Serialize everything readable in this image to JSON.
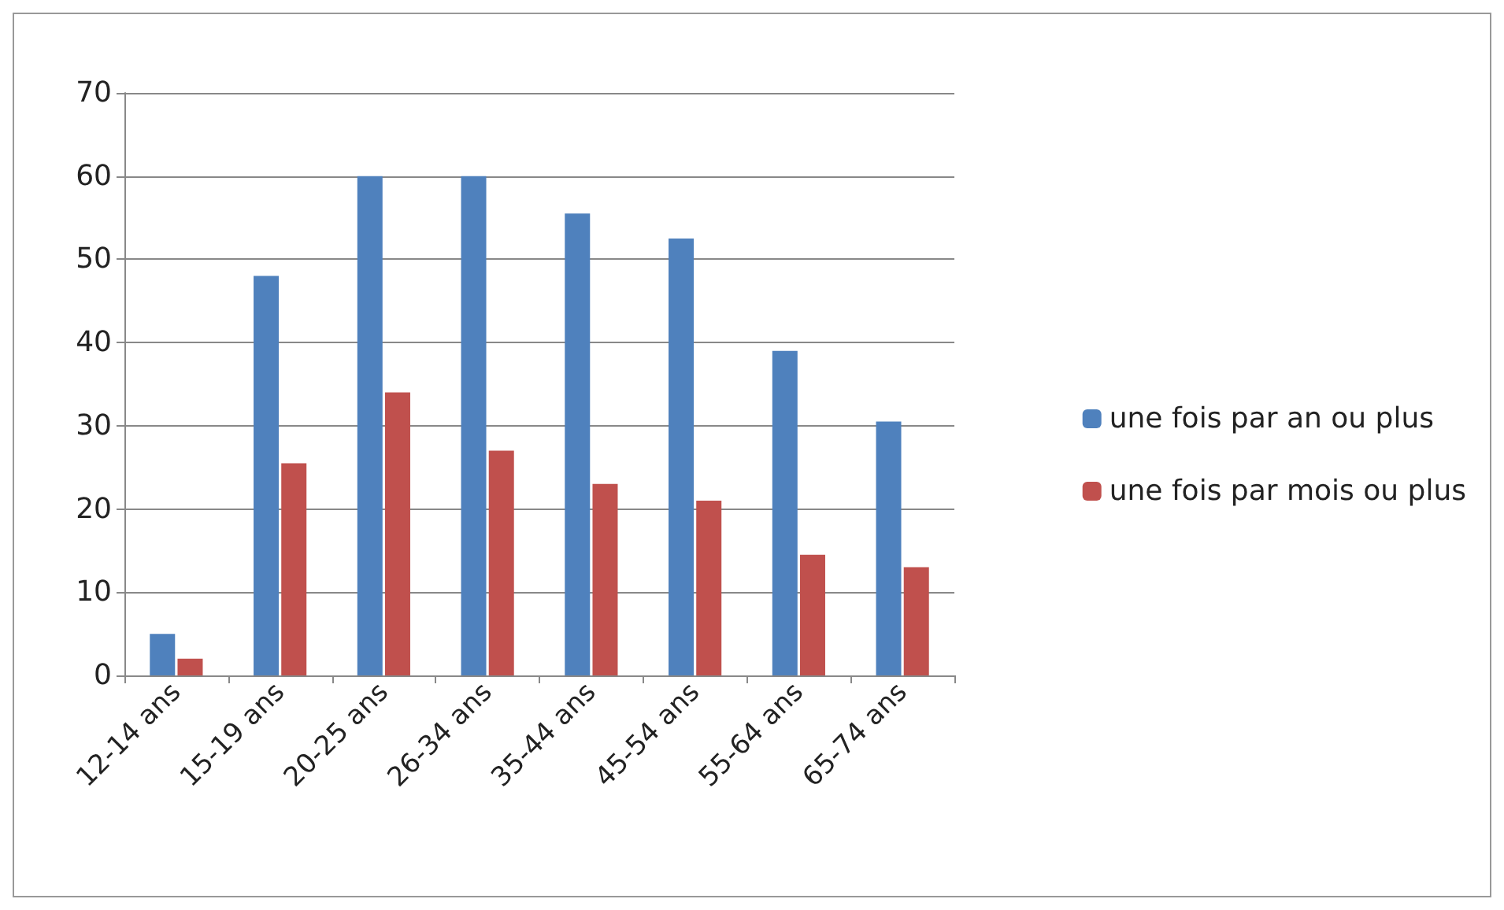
{
  "chart_data": {
    "type": "bar",
    "categories": [
      "12-14 ans",
      "15-19 ans",
      "20-25 ans",
      "26-34 ans",
      "35-44 ans",
      "45-54 ans",
      "55-64 ans",
      "65-74 ans"
    ],
    "series": [
      {
        "name": "une fois par an ou plus",
        "color": "#4f81bd",
        "values": [
          5,
          48,
          60,
          60,
          55.5,
          52.5,
          39,
          30.5
        ]
      },
      {
        "name": "une fois par mois ou plus",
        "color": "#c0504d",
        "values": [
          2,
          25.5,
          34,
          27,
          23,
          21,
          14.5,
          13
        ]
      }
    ],
    "ylim": [
      0,
      70
    ],
    "yticks": [
      0,
      10,
      20,
      30,
      40,
      50,
      60,
      70
    ],
    "grid": "y",
    "legend": "right"
  }
}
